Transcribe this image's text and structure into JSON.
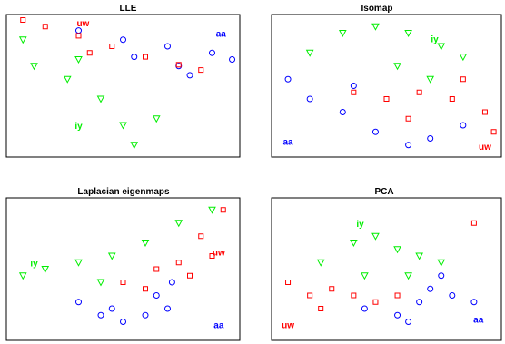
{
  "colors": {
    "aa": "#0000ff",
    "iy": "#00ee00",
    "uw": "#ff0000",
    "axes": "#000000",
    "background": "#ffffff"
  },
  "chart_data": [
    {
      "type": "scatter",
      "title": "LLE",
      "series": [
        {
          "name": "aa",
          "marker": "circle",
          "color": "#0000ff",
          "points": [
            [
              0.3,
              0.92
            ],
            [
              0.5,
              0.85
            ],
            [
              0.7,
              0.8
            ],
            [
              0.9,
              0.75
            ],
            [
              0.99,
              0.7
            ],
            [
              0.75,
              0.65
            ],
            [
              0.55,
              0.72
            ],
            [
              0.8,
              0.58
            ]
          ]
        },
        {
          "name": "iy",
          "marker": "triangle-down",
          "color": "#00ee00",
          "points": [
            [
              0.05,
              0.85
            ],
            [
              0.1,
              0.65
            ],
            [
              0.25,
              0.55
            ],
            [
              0.4,
              0.4
            ],
            [
              0.5,
              0.2
            ],
            [
              0.55,
              0.05
            ],
            [
              0.65,
              0.25
            ],
            [
              0.3,
              0.7
            ]
          ]
        },
        {
          "name": "uw",
          "marker": "square",
          "color": "#ff0000",
          "points": [
            [
              0.05,
              1.0
            ],
            [
              0.15,
              0.95
            ],
            [
              0.3,
              0.88
            ],
            [
              0.45,
              0.8
            ],
            [
              0.6,
              0.72
            ],
            [
              0.75,
              0.66
            ],
            [
              0.85,
              0.62
            ],
            [
              0.35,
              0.75
            ]
          ]
        }
      ],
      "labels": [
        {
          "text": "uw",
          "class": "uw",
          "at": [
            0.32,
            0.98
          ]
        },
        {
          "text": "aa",
          "class": "aa",
          "at": [
            0.94,
            0.9
          ]
        },
        {
          "text": "iy",
          "class": "iy",
          "at": [
            0.3,
            0.2
          ]
        }
      ]
    },
    {
      "type": "scatter",
      "title": "Isomap",
      "series": [
        {
          "name": "aa",
          "marker": "circle",
          "color": "#0000ff",
          "points": [
            [
              0.05,
              0.55
            ],
            [
              0.15,
              0.4
            ],
            [
              0.3,
              0.3
            ],
            [
              0.45,
              0.15
            ],
            [
              0.6,
              0.05
            ],
            [
              0.35,
              0.5
            ],
            [
              0.7,
              0.1
            ],
            [
              0.85,
              0.2
            ]
          ]
        },
        {
          "name": "iy",
          "marker": "triangle-down",
          "color": "#00ee00",
          "points": [
            [
              0.15,
              0.75
            ],
            [
              0.3,
              0.9
            ],
            [
              0.45,
              0.95
            ],
            [
              0.6,
              0.9
            ],
            [
              0.75,
              0.8
            ],
            [
              0.85,
              0.72
            ],
            [
              0.55,
              0.65
            ],
            [
              0.7,
              0.55
            ]
          ]
        },
        {
          "name": "uw",
          "marker": "square",
          "color": "#ff0000",
          "points": [
            [
              0.35,
              0.45
            ],
            [
              0.5,
              0.4
            ],
            [
              0.65,
              0.45
            ],
            [
              0.8,
              0.4
            ],
            [
              0.95,
              0.3
            ],
            [
              0.99,
              0.15
            ],
            [
              0.6,
              0.25
            ],
            [
              0.85,
              0.55
            ]
          ]
        }
      ],
      "labels": [
        {
          "text": "iy",
          "class": "iy",
          "at": [
            0.72,
            0.86
          ]
        },
        {
          "text": "aa",
          "class": "aa",
          "at": [
            0.05,
            0.08
          ]
        },
        {
          "text": "uw",
          "class": "uw",
          "at": [
            0.95,
            0.04
          ]
        }
      ]
    },
    {
      "type": "scatter",
      "title": "Laplacian eigenmaps",
      "series": [
        {
          "name": "aa",
          "marker": "circle",
          "color": "#0000ff",
          "points": [
            [
              0.3,
              0.25
            ],
            [
              0.4,
              0.15
            ],
            [
              0.5,
              0.1
            ],
            [
              0.6,
              0.15
            ],
            [
              0.65,
              0.3
            ],
            [
              0.7,
              0.2
            ],
            [
              0.72,
              0.4
            ],
            [
              0.45,
              0.2
            ]
          ]
        },
        {
          "name": "iy",
          "marker": "triangle-down",
          "color": "#00ee00",
          "points": [
            [
              0.05,
              0.45
            ],
            [
              0.15,
              0.5
            ],
            [
              0.3,
              0.55
            ],
            [
              0.45,
              0.6
            ],
            [
              0.6,
              0.7
            ],
            [
              0.75,
              0.85
            ],
            [
              0.9,
              0.95
            ],
            [
              0.4,
              0.4
            ]
          ]
        },
        {
          "name": "uw",
          "marker": "square",
          "color": "#ff0000",
          "points": [
            [
              0.5,
              0.4
            ],
            [
              0.65,
              0.5
            ],
            [
              0.75,
              0.55
            ],
            [
              0.85,
              0.75
            ],
            [
              0.95,
              0.95
            ],
            [
              0.9,
              0.6
            ],
            [
              0.6,
              0.35
            ],
            [
              0.8,
              0.45
            ]
          ]
        }
      ],
      "labels": [
        {
          "text": "iy",
          "class": "iy",
          "at": [
            0.1,
            0.55
          ]
        },
        {
          "text": "uw",
          "class": "uw",
          "at": [
            0.93,
            0.63
          ]
        },
        {
          "text": "aa",
          "class": "aa",
          "at": [
            0.93,
            0.08
          ]
        }
      ]
    },
    {
      "type": "scatter",
      "title": "PCA",
      "series": [
        {
          "name": "aa",
          "marker": "circle",
          "color": "#0000ff",
          "points": [
            [
              0.4,
              0.2
            ],
            [
              0.55,
              0.15
            ],
            [
              0.65,
              0.25
            ],
            [
              0.7,
              0.35
            ],
            [
              0.8,
              0.3
            ],
            [
              0.9,
              0.25
            ],
            [
              0.75,
              0.45
            ],
            [
              0.6,
              0.1
            ]
          ]
        },
        {
          "name": "iy",
          "marker": "triangle-down",
          "color": "#00ee00",
          "points": [
            [
              0.2,
              0.55
            ],
            [
              0.35,
              0.7
            ],
            [
              0.45,
              0.75
            ],
            [
              0.55,
              0.65
            ],
            [
              0.65,
              0.6
            ],
            [
              0.75,
              0.55
            ],
            [
              0.4,
              0.45
            ],
            [
              0.6,
              0.45
            ]
          ]
        },
        {
          "name": "uw",
          "marker": "square",
          "color": "#ff0000",
          "points": [
            [
              0.05,
              0.4
            ],
            [
              0.15,
              0.3
            ],
            [
              0.25,
              0.35
            ],
            [
              0.35,
              0.3
            ],
            [
              0.45,
              0.25
            ],
            [
              0.55,
              0.3
            ],
            [
              0.2,
              0.2
            ],
            [
              0.9,
              0.85
            ]
          ]
        }
      ],
      "labels": [
        {
          "text": "iy",
          "class": "iy",
          "at": [
            0.38,
            0.85
          ]
        },
        {
          "text": "uw",
          "class": "uw",
          "at": [
            0.05,
            0.08
          ]
        },
        {
          "text": "aa",
          "class": "aa",
          "at": [
            0.92,
            0.12
          ]
        }
      ]
    }
  ]
}
